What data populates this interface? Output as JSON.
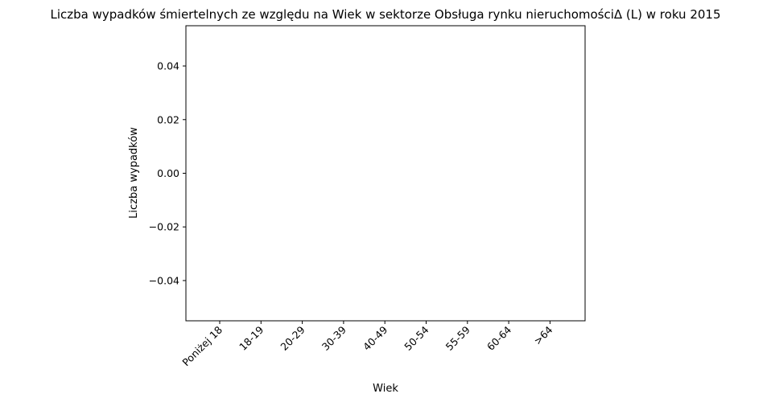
{
  "chart_data": {
    "type": "bar",
    "title": "Liczba wypadków śmiertelnych ze względu na Wiek w sektorze  Obsługa rynku nieruchomościΔ  (L) w roku 2015",
    "xlabel": "Wiek",
    "ylabel": "Liczba wypadków",
    "categories": [
      "Poniżej 18",
      "18-19",
      "20-29",
      "30-39",
      "40-49",
      "50-54",
      "55-59",
      "60-64",
      ">64"
    ],
    "values": [
      0,
      0,
      0,
      0,
      0,
      0,
      0,
      0,
      0
    ],
    "ylim": [
      -0.055,
      0.055
    ],
    "yticks": [
      -0.04,
      -0.02,
      0.0,
      0.02,
      0.04
    ],
    "ytick_labels": [
      "−0.04",
      "−0.02",
      "0.00",
      "0.02",
      "0.04"
    ],
    "xtick_rotation_deg": 45,
    "grid": false,
    "legend": "none",
    "colors": {
      "axis": "#000000",
      "background": "#ffffff",
      "bar": "#1f77b4"
    }
  }
}
